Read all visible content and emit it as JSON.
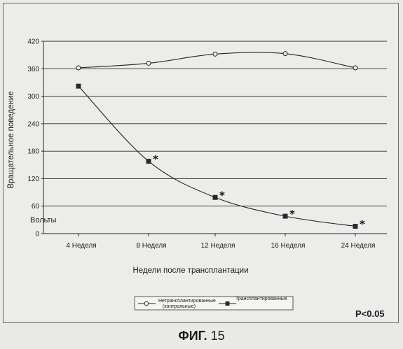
{
  "chart_data": {
    "type": "line",
    "title": "",
    "ylabel": "Вращательное поведение",
    "xlabel": "Недели после трансплантации",
    "ylim": [
      0,
      420
    ],
    "yticks": [
      0,
      60,
      120,
      180,
      240,
      300,
      360,
      420
    ],
    "categories": [
      "4 Неделя",
      "8 Неделя",
      "12 Неделя",
      "16 Неделя",
      "24 Неделя"
    ],
    "grid": true,
    "legend_position": "bottom-center",
    "y_annotation": "Вольты",
    "significance_marker": "*",
    "series": [
      {
        "name": "Нетрансплантированные (контрольные)",
        "marker": "circle-open",
        "color": "#222222",
        "values": [
          362,
          372,
          392,
          393,
          362
        ],
        "significant": [
          false,
          false,
          false,
          false,
          false
        ]
      },
      {
        "name": "Трансплантированные",
        "marker": "square-filled",
        "color": "#222222",
        "values": [
          322,
          158,
          79,
          38,
          16
        ],
        "significant": [
          false,
          true,
          true,
          true,
          true
        ]
      }
    ],
    "legend": {
      "entry1_line1": "Нетрансплантированные",
      "entry1_line2": "(контрольные)",
      "entry2": "Трансплантированные"
    },
    "annotation_p": "P<0.05"
  },
  "caption": {
    "prefix": "ФИГ.",
    "number": "15"
  }
}
